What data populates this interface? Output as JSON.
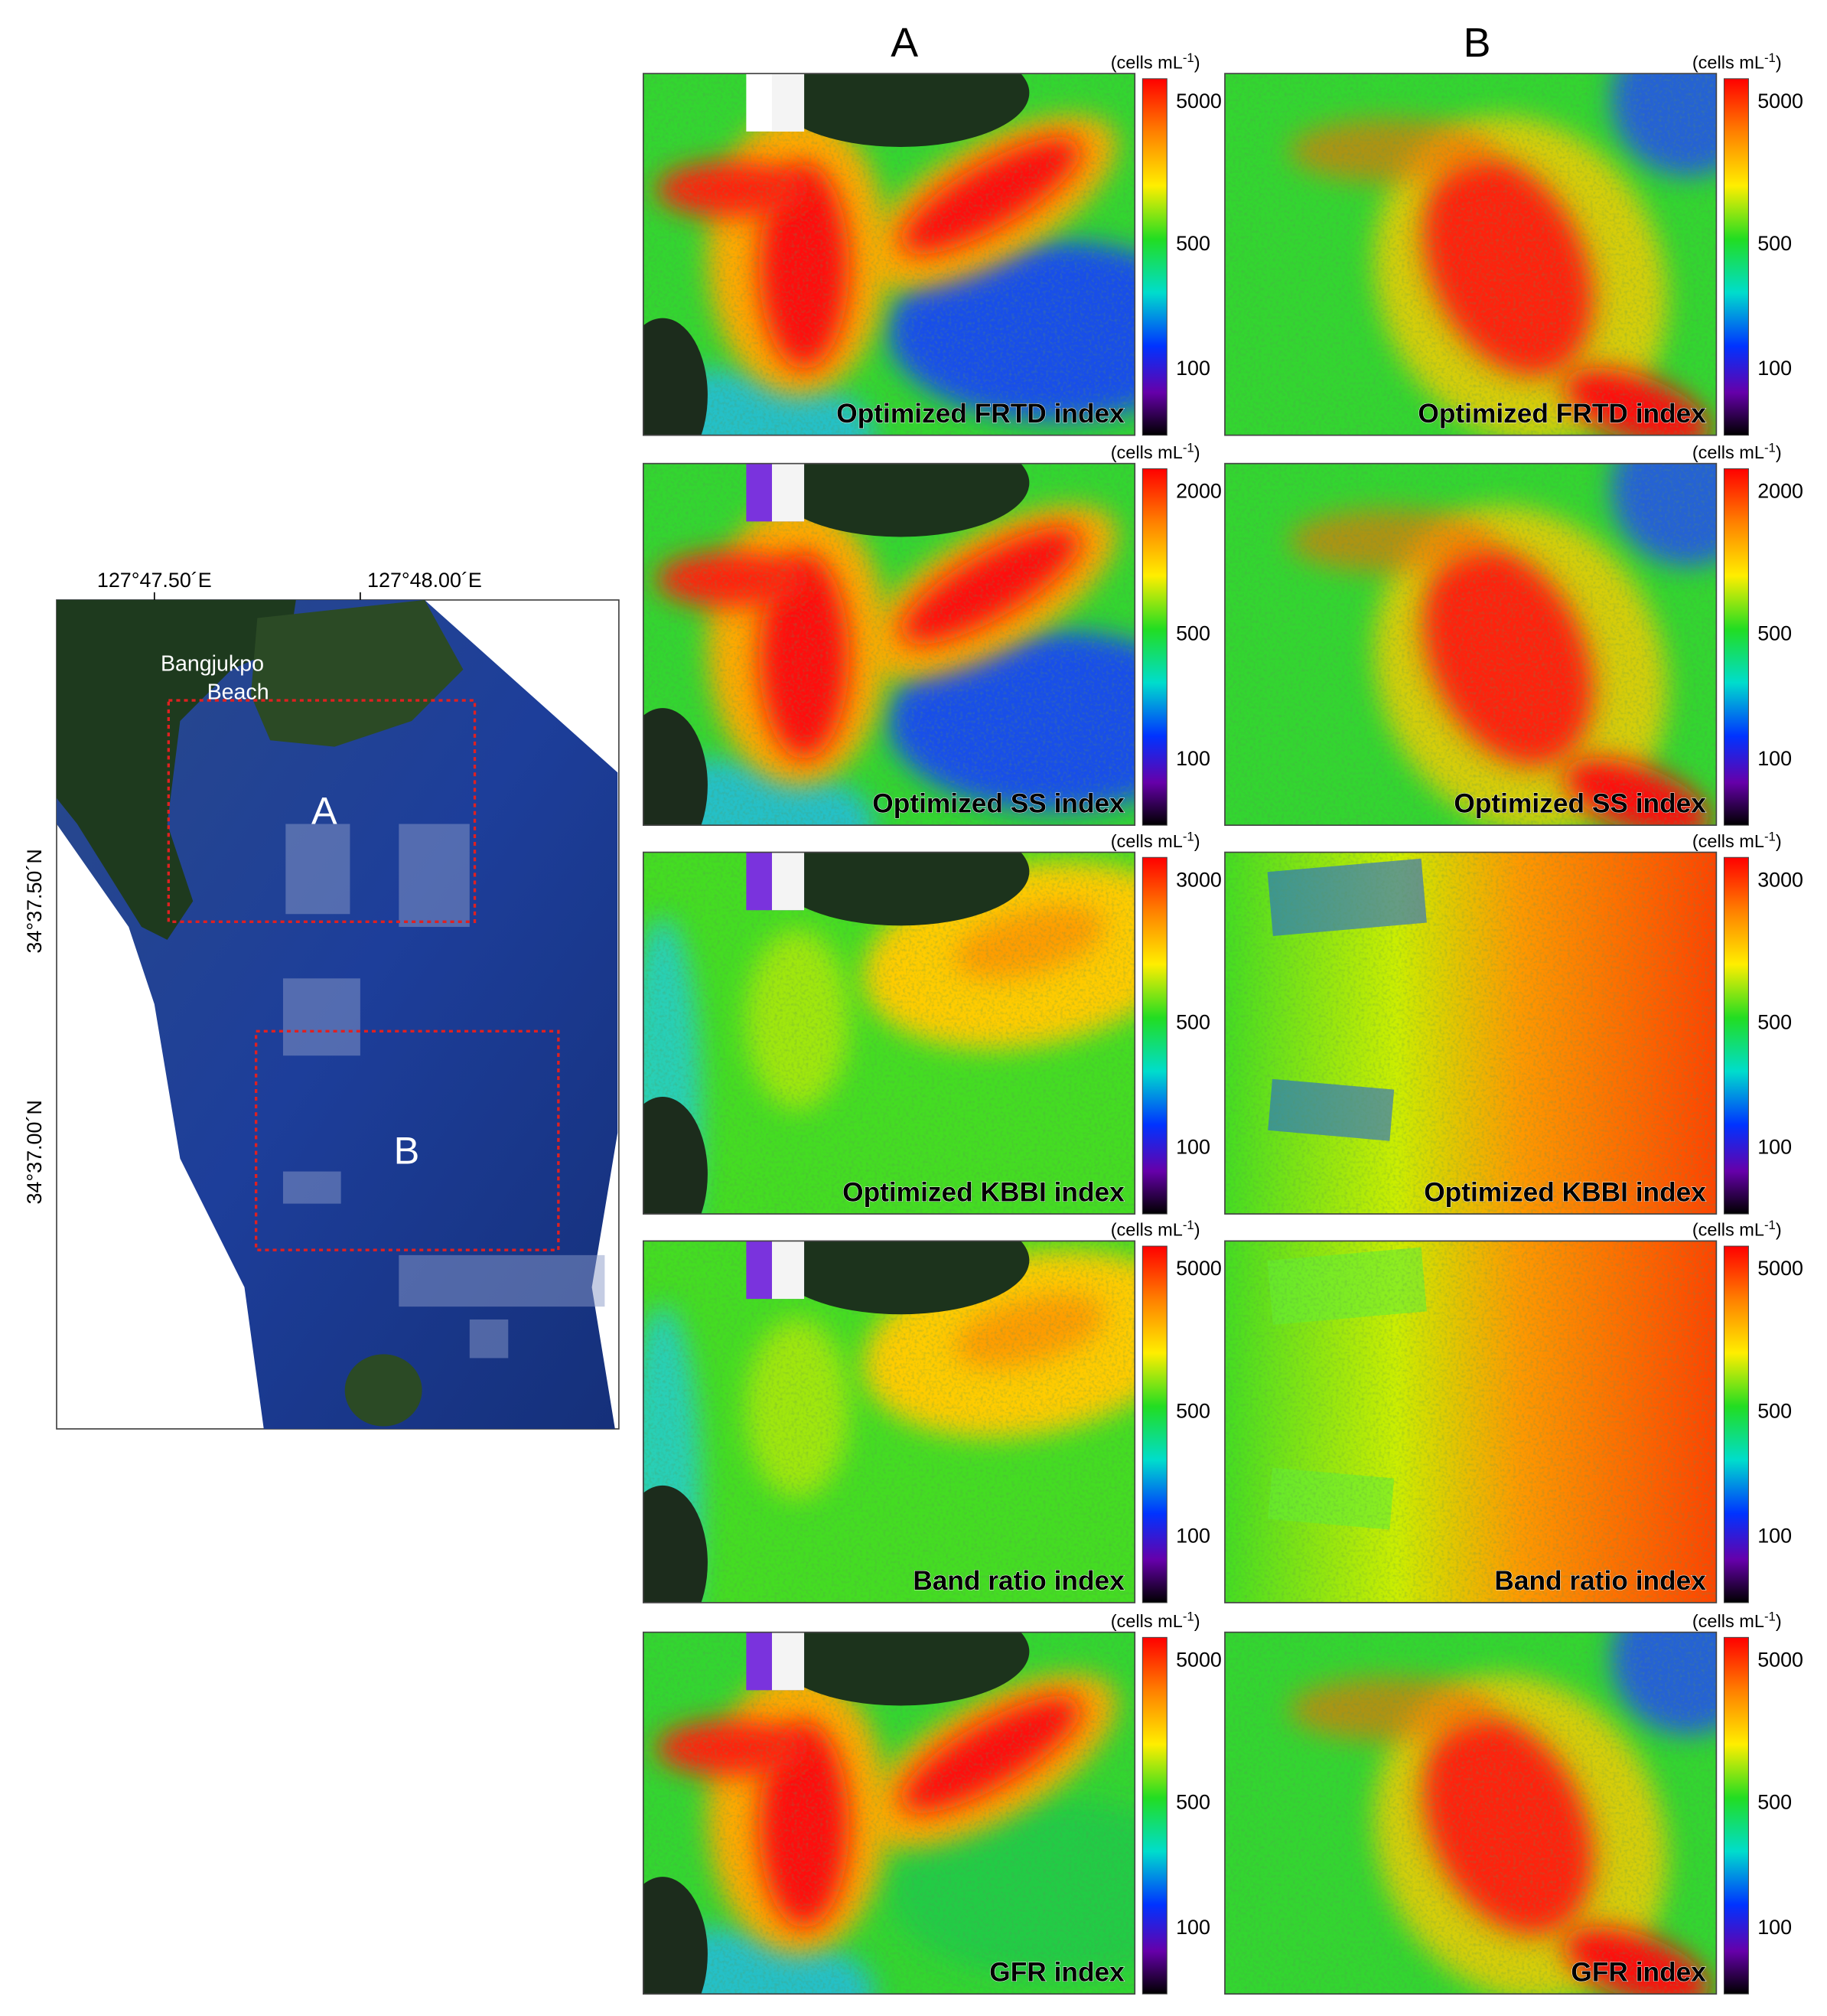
{
  "columns": [
    "A",
    "B"
  ],
  "map": {
    "lon_labels": [
      "127°47.50´E",
      "127°48.00´E"
    ],
    "lat_labels": [
      "34°37.50´N",
      "34°37.00´N"
    ],
    "place": [
      "Bangjukpo",
      "Beach"
    ],
    "boxes": [
      "A",
      "B"
    ]
  },
  "colorbar_unit": {
    "base": "(cells mL",
    "sup": "-1",
    "end": ")"
  },
  "rows": [
    {
      "index": "Optimized FRTD index",
      "ticks": [
        5000,
        500,
        100
      ]
    },
    {
      "index": "Optimized SS index",
      "ticks": [
        2000,
        500,
        100
      ]
    },
    {
      "index": "Optimized KBBI index",
      "ticks": [
        3000,
        500,
        100
      ]
    },
    {
      "index": "Band ratio index",
      "ticks": [
        5000,
        500,
        100
      ]
    },
    {
      "index": "GFR index",
      "ticks": [
        5000,
        500,
        100
      ]
    }
  ]
}
